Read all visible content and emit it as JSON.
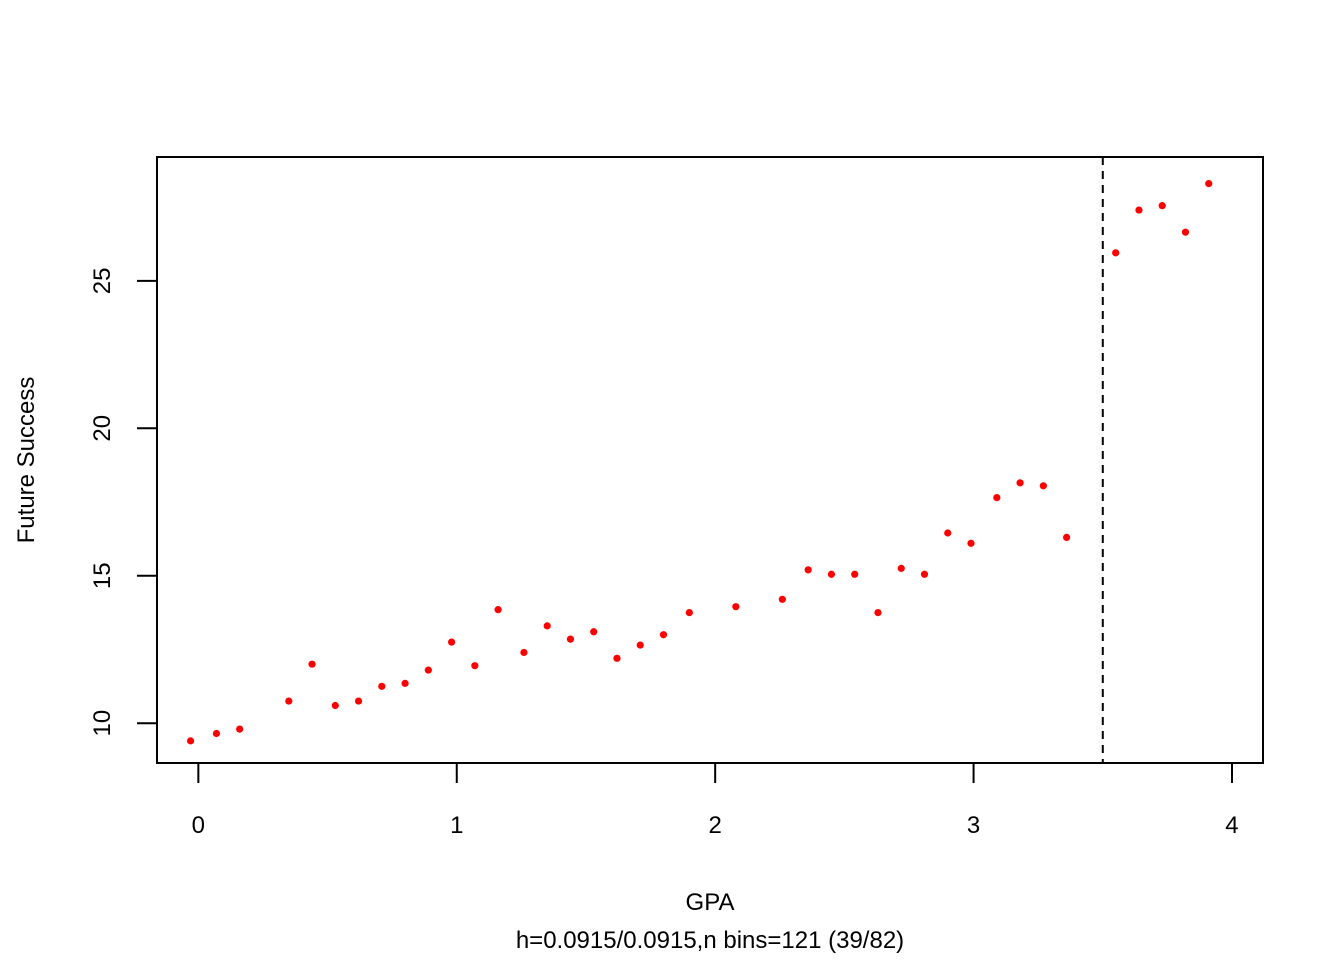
{
  "chart_data": {
    "type": "scatter",
    "xlabel": "GPA",
    "subtitle": "h=0.0915/0.0915,n bins=121 (39/82)",
    "ylabel": "Future Success",
    "xlim": [
      -0.16,
      4.12
    ],
    "ylim": [
      8.65,
      29.2
    ],
    "x_ticks": [
      0,
      1,
      2,
      3,
      4
    ],
    "y_ticks": [
      10,
      15,
      20,
      25
    ],
    "cutoff": 3.5,
    "grid": false,
    "legend": "none",
    "point_color": "#ff0000",
    "series": [
      {
        "x": [
          -0.03,
          0.07,
          0.16,
          0.35,
          0.44,
          0.53,
          0.62,
          0.71,
          0.8,
          0.89,
          0.98,
          1.07,
          1.16,
          1.26,
          1.35,
          1.44,
          1.53,
          1.62,
          1.71,
          1.8,
          1.9,
          2.08,
          2.26,
          2.36,
          2.45,
          2.54,
          2.63,
          2.72,
          2.81,
          2.9,
          2.99,
          3.09,
          3.18,
          3.27,
          3.36,
          3.55,
          3.64,
          3.73,
          3.82,
          3.91
        ],
        "y": [
          9.4,
          9.65,
          9.8,
          10.75,
          12.0,
          10.6,
          10.75,
          11.25,
          11.35,
          11.8,
          12.75,
          11.95,
          13.85,
          12.4,
          13.3,
          12.85,
          13.1,
          12.2,
          12.65,
          13.0,
          13.75,
          13.95,
          14.2,
          15.2,
          15.05,
          15.05,
          13.75,
          15.25,
          15.05,
          16.45,
          16.1,
          17.65,
          18.15,
          18.05,
          16.3,
          25.95,
          27.4,
          27.55,
          26.65,
          28.3
        ]
      }
    ]
  }
}
